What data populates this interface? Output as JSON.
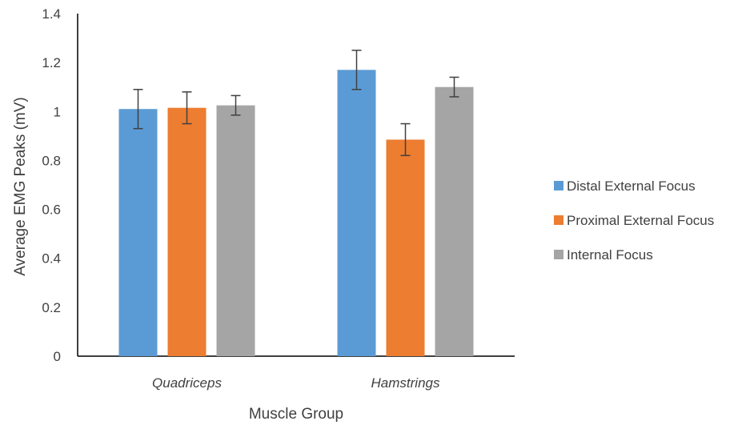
{
  "chart_data": {
    "type": "bar",
    "title": "",
    "xlabel": "Muscle Group",
    "ylabel": "Average EMG Peaks (mV)",
    "categories": [
      "Quadriceps",
      "Hamstrings"
    ],
    "ylim": [
      0,
      1.4
    ],
    "yticks": [
      0,
      0.2,
      0.4,
      0.6,
      0.8,
      1,
      1.2,
      1.4
    ],
    "ytick_labels": [
      "0",
      "0.2",
      "0.4",
      "0.6",
      "0.8",
      "1",
      "1.2",
      "1.4"
    ],
    "grid": false,
    "legend_position": "right",
    "series": [
      {
        "name": "Distal External Focus",
        "color": "#5B9BD5",
        "values": [
          1.01,
          1.17
        ],
        "errors": [
          0.08,
          0.08
        ]
      },
      {
        "name": "Proximal External Focus",
        "color": "#ED7D31",
        "values": [
          1.015,
          0.885
        ],
        "errors": [
          0.065,
          0.065
        ]
      },
      {
        "name": "Internal Focus",
        "color": "#A5A5A5",
        "values": [
          1.025,
          1.1
        ],
        "errors": [
          0.04,
          0.04
        ]
      }
    ]
  }
}
